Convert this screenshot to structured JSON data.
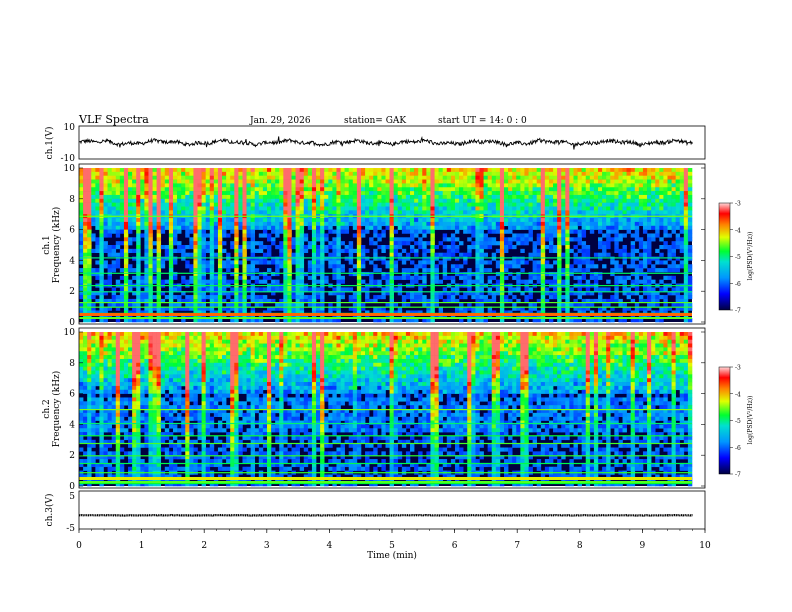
{
  "header": {
    "title": "VLF  Spectra",
    "date": "Jan. 29, 2026",
    "station": "station= GAK",
    "start_ut": "start  UT  =    14: 0   : 0"
  },
  "chart_data": [
    {
      "type": "line",
      "name": "ch1-waveform",
      "ylabel": "ch.1(V)",
      "ylim": [
        -10,
        10
      ],
      "ytick_labels": [
        "10",
        "-10"
      ],
      "xlim": [
        0,
        9.8
      ],
      "baseline": 0
    },
    {
      "type": "heatmap",
      "name": "ch1-spectrogram",
      "ylabel_line1": "ch.1",
      "ylabel_line2": "Frequency  (kHz)",
      "ylim": [
        0,
        10
      ],
      "ytick_labels": [
        "0",
        "2",
        "4",
        "6",
        "8",
        "10"
      ],
      "colorbar": {
        "label": "log(PSD(V²/Hz))",
        "range": [
          -7,
          -3
        ],
        "tick_labels": [
          "-3",
          "-4",
          "-5",
          "-6",
          "-7"
        ]
      }
    },
    {
      "type": "heatmap",
      "name": "ch2-spectrogram",
      "ylabel_line1": "ch.2",
      "ylabel_line2": "Frequency  (kHz)",
      "ylim": [
        0,
        10
      ],
      "ytick_labels": [
        "0",
        "2",
        "4",
        "6",
        "8",
        "10"
      ],
      "colorbar": {
        "label": "log(PSD(V²/Hz))",
        "range": [
          -7,
          -3
        ],
        "tick_labels": [
          "-3",
          "-4",
          "-5",
          "-6",
          "-7"
        ]
      }
    },
    {
      "type": "line",
      "name": "ch3-waveform",
      "ylabel": "ch.3(V)",
      "ylim": [
        -5,
        5
      ],
      "ytick_labels": [
        "5",
        "-5"
      ],
      "xlim": [
        0,
        9.8
      ],
      "baseline": -1.4
    }
  ],
  "x_axis": {
    "label": "Time  (min)",
    "range": [
      0,
      10
    ],
    "tick_labels": [
      "0",
      "1",
      "2",
      "3",
      "4",
      "5",
      "6",
      "7",
      "8",
      "9",
      "10"
    ]
  },
  "colors": {
    "spectro_bg": "#000040",
    "dark_blue": "#0000c8",
    "green": "#40ff40"
  }
}
